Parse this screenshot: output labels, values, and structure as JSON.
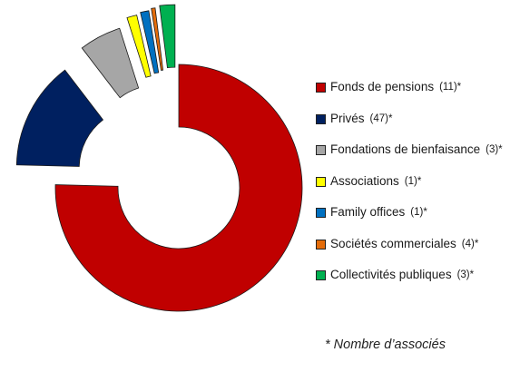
{
  "chart_data": {
    "type": "pie",
    "title": "",
    "style": "exploded-donut",
    "slices": [
      {
        "label": "Fonds de pensions",
        "count": "(11)*",
        "value": 75.4,
        "color": "#c00000"
      },
      {
        "label": "Privés",
        "count": "(47)*",
        "value": 14.2,
        "color": "#002060"
      },
      {
        "label": "Fondations de bienfaisance",
        "count": "(3)*",
        "value": 5.5,
        "color": "#a6a6a6"
      },
      {
        "label": "Associations",
        "count": "(1)*",
        "value": 1.3,
        "color": "#ffff00"
      },
      {
        "label": "Family offices",
        "count": "(1)*",
        "value": 1.1,
        "color": "#0070c0"
      },
      {
        "label": "Sociétés commerciales",
        "count": "(4)*",
        "value": 0.5,
        "color": "#e46c0a"
      },
      {
        "label": "Collectivités publiques",
        "count": "(3)*",
        "value": 2.0,
        "color": "#00b050"
      }
    ]
  },
  "footnote": "* Nombre d’associés"
}
